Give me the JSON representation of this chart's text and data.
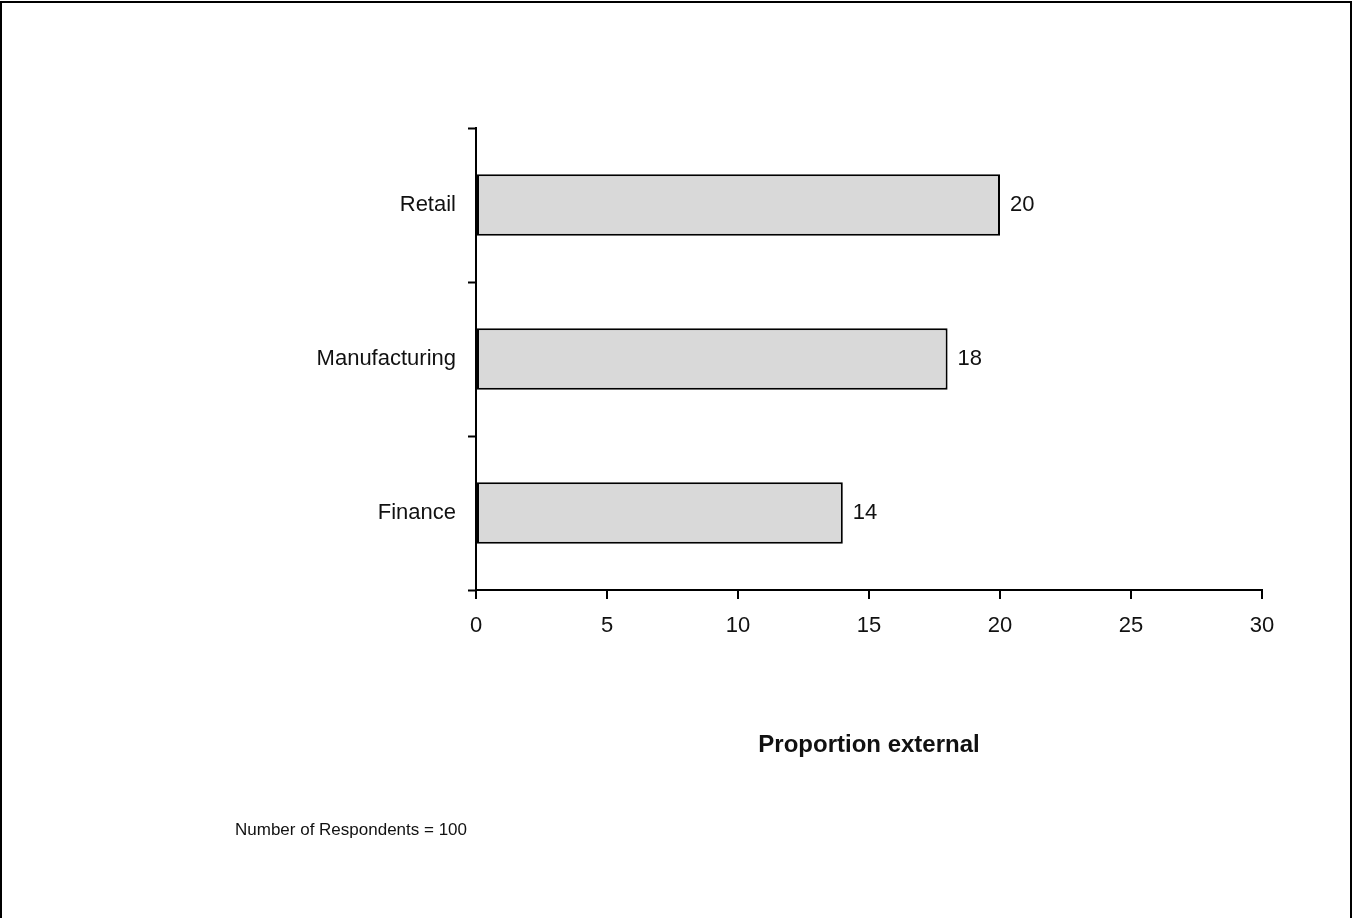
{
  "chart_data": {
    "type": "bar",
    "orientation": "horizontal",
    "categories": [
      "Retail",
      "Manufacturing",
      "Finance"
    ],
    "values": [
      20,
      18,
      14
    ],
    "color": "#d9d9d9",
    "xlim": [
      0,
      30
    ],
    "xticks": [
      0,
      5,
      10,
      15,
      20,
      25,
      30
    ],
    "xlabel": "Proportion external",
    "data_labels": true,
    "grid": false,
    "legend": false,
    "annotations": [
      "Number of Respondents = 100"
    ]
  }
}
